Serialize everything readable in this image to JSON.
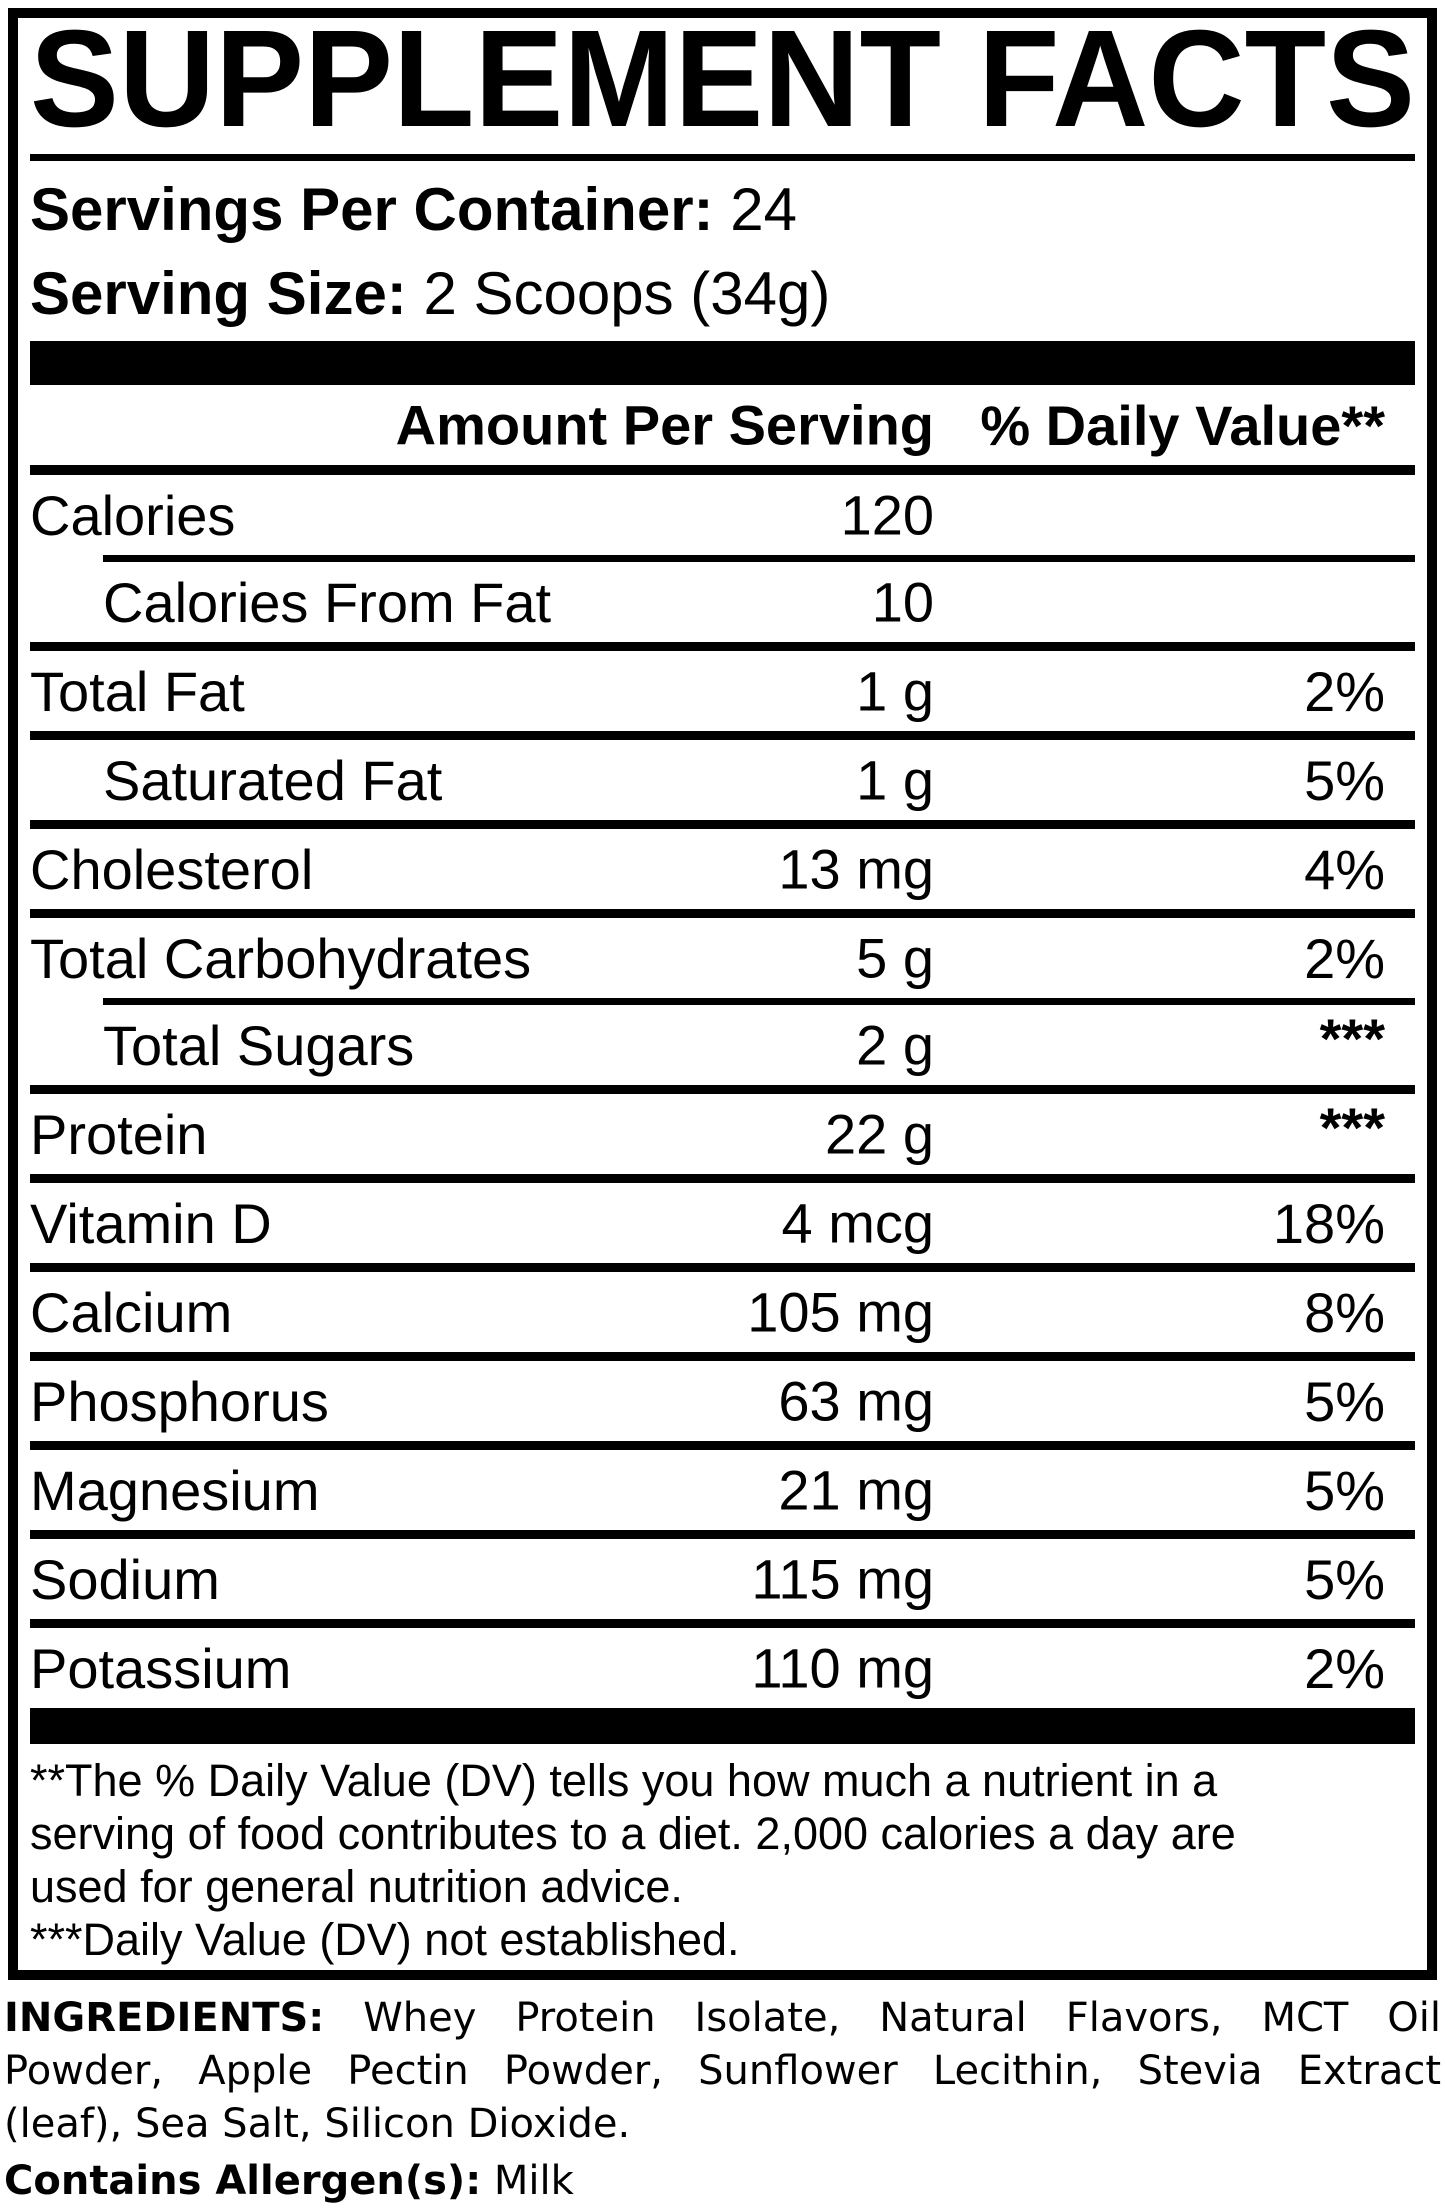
{
  "title": "SUPPLEMENT FACTS",
  "serving_info": {
    "servings_label": "Servings Per Container:",
    "servings_value": "24",
    "size_label": "Serving Size:",
    "size_value": "2 Scoops (34g)"
  },
  "table": {
    "headers": {
      "amount": "Amount Per Serving",
      "daily_value": "% Daily Value**"
    },
    "rows": [
      {
        "name": "Calories",
        "amount": "120",
        "dv": "",
        "indent": false,
        "sep": "indent"
      },
      {
        "name": "Calories From Fat",
        "amount": "10",
        "dv": "",
        "indent": true,
        "sep": "full"
      },
      {
        "name": "Total Fat",
        "amount": "1 g",
        "dv": "2%",
        "indent": false,
        "sep": "full"
      },
      {
        "name": "Saturated Fat",
        "amount": "1 g",
        "dv": "5%",
        "indent": true,
        "sep": "full"
      },
      {
        "name": "Cholesterol",
        "amount": "13 mg",
        "dv": "4%",
        "indent": false,
        "sep": "full"
      },
      {
        "name": "Total Carbohydrates",
        "amount": "5 g",
        "dv": "2%",
        "indent": false,
        "sep": "indent"
      },
      {
        "name": "Total Sugars",
        "amount": "2 g",
        "dv": "***",
        "indent": true,
        "sep": "full"
      },
      {
        "name": "Protein",
        "amount": "22 g",
        "dv": "***",
        "indent": false,
        "sep": "full"
      },
      {
        "name": "Vitamin D",
        "amount": "4 mcg",
        "dv": "18%",
        "indent": false,
        "sep": "full"
      },
      {
        "name": "Calcium",
        "amount": "105 mg",
        "dv": "8%",
        "indent": false,
        "sep": "full"
      },
      {
        "name": "Phosphorus",
        "amount": "63 mg",
        "dv": "5%",
        "indent": false,
        "sep": "full"
      },
      {
        "name": "Magnesium",
        "amount": "21 mg",
        "dv": "5%",
        "indent": false,
        "sep": "full"
      },
      {
        "name": "Sodium",
        "amount": "115 mg",
        "dv": "5%",
        "indent": false,
        "sep": "full"
      },
      {
        "name": "Potassium",
        "amount": "110 mg",
        "dv": "2%",
        "indent": false,
        "sep": "none"
      }
    ]
  },
  "footnotes": {
    "lines": [
      "**The % Daily Value (DV) tells you how much a nutrient in a",
      "serving of food contributes to a diet. 2,000 calories a day are",
      "used for general nutrition advice.",
      "***Daily Value (DV) not established."
    ]
  },
  "ingredients": {
    "label": "INGREDIENTS:",
    "line1": "Whey Protein Isolate, Natural Flavors, MCT Oil",
    "line2": "Powder, Apple Pectin Powder, Sunflower Lecithin, Stevia Extract",
    "line3": "(leaf), Sea Salt, Silicon Dioxide.",
    "allergen_label": "Contains Allergen(s):",
    "allergen_value": "Milk"
  },
  "colors": {
    "ink": "#000000",
    "paper": "#ffffff"
  }
}
